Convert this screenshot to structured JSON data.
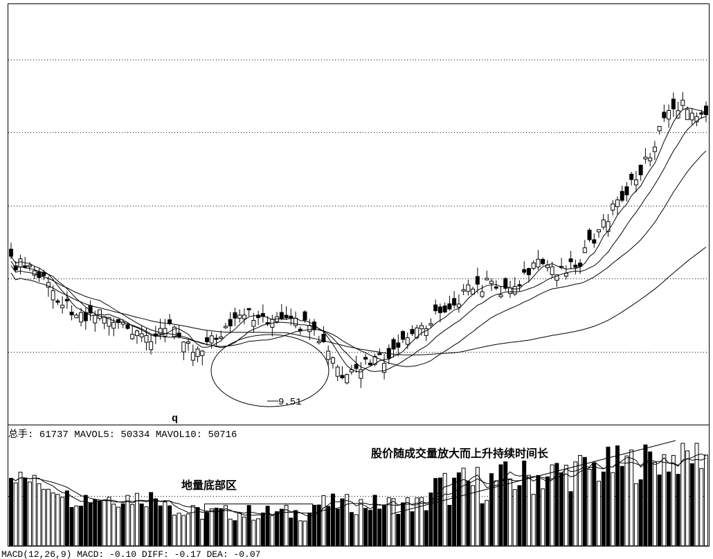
{
  "price_panel": {
    "low_label": "9.51",
    "marker_label": "q"
  },
  "volume_panel": {
    "header_text": "总手: 61737  MAVOL5: 50334  MAVOL10: 50716",
    "annotation_bottom": "地量底部区",
    "annotation_rise": "股价随成交量放大而上升持续时间长"
  },
  "macd_panel": {
    "header_text": "MACD(12,26,9)  MACD: -0.10  DIFF: -0.17  DEA: -0.07"
  },
  "chart_data": {
    "type": "candlestick",
    "candle_count": 150,
    "price_min": 9.51,
    "colors": {
      "up": "#ffffff",
      "down": "#000000",
      "line": "#000000",
      "grid": "#000000"
    }
  }
}
